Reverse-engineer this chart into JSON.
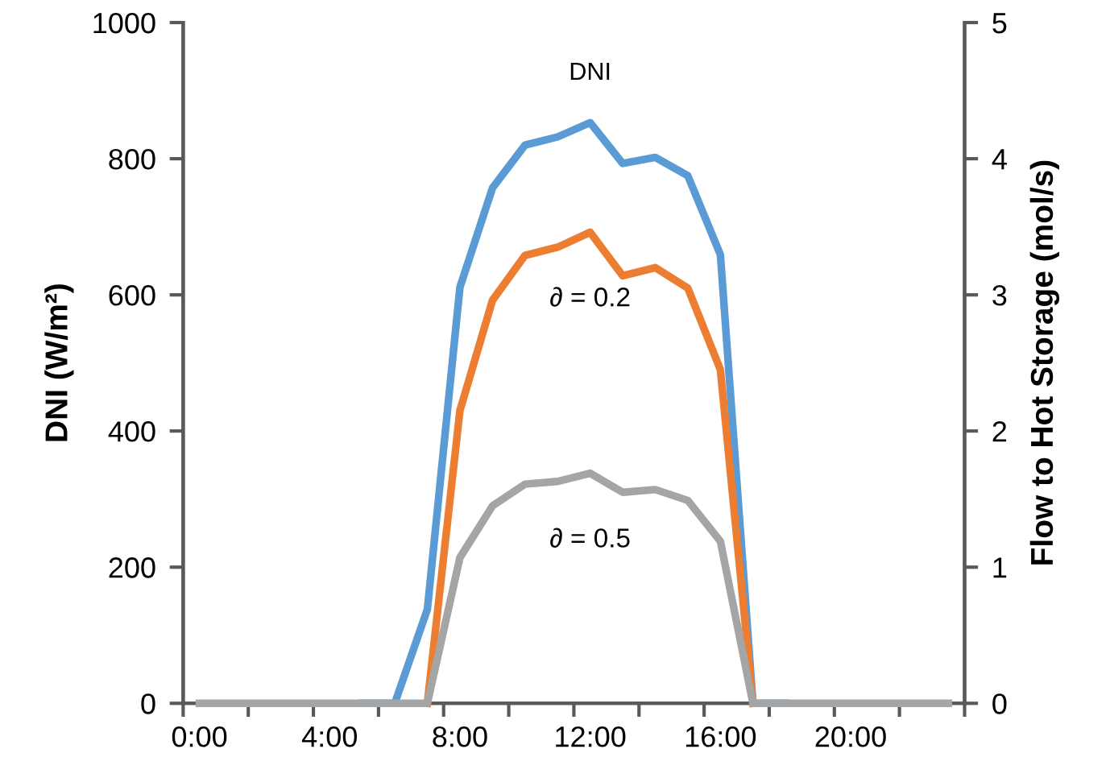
{
  "chart_data": {
    "type": "line",
    "x": [
      0,
      1,
      2,
      3,
      4,
      5,
      6,
      7,
      8,
      9,
      10,
      11,
      12,
      13,
      14,
      15,
      16,
      17,
      18,
      19,
      20,
      21,
      22,
      23
    ],
    "series": [
      {
        "name": "DNI",
        "color": "#5b9bd5",
        "values": [
          null,
          null,
          null,
          null,
          null,
          0,
          0,
          138,
          611,
          757,
          820,
          832,
          853,
          793,
          802,
          775,
          659,
          0,
          0,
          null,
          null,
          null,
          null,
          null
        ]
      },
      {
        "name": "∂ = 0.2",
        "color": "#ed7d31",
        "axis": "y2",
        "values": [
          null,
          null,
          null,
          null,
          null,
          null,
          null,
          0,
          2.15,
          2.96,
          3.29,
          3.35,
          3.46,
          3.14,
          3.2,
          3.05,
          2.45,
          0,
          null,
          null,
          null,
          null,
          null,
          null
        ]
      },
      {
        "name": "∂ = 0.5",
        "color": "#a5a5a5",
        "axis": "y2",
        "values": [
          0,
          0,
          0,
          0,
          0,
          0,
          0,
          0,
          1.07,
          1.45,
          1.61,
          1.63,
          1.69,
          1.55,
          1.57,
          1.49,
          1.19,
          0,
          0,
          0,
          0,
          0,
          0,
          0
        ]
      }
    ],
    "ylabel": "DNI (W/m²)",
    "y2label": "Flow to Hot Storage (mol/s)",
    "xlim": [
      -0.5,
      23.5
    ],
    "xticks": [
      {
        "value": 0,
        "label": "0:00"
      },
      {
        "value": 4,
        "label": "4:00"
      },
      {
        "value": 8,
        "label": "8:00"
      },
      {
        "value": 12,
        "label": "12:00"
      },
      {
        "value": 16,
        "label": "16:00"
      },
      {
        "value": 20,
        "label": "20:00"
      },
      {
        "value": -0.5,
        "label": null
      },
      {
        "value": 1.5,
        "label": null
      },
      {
        "value": 3.5,
        "label": null
      },
      {
        "value": 5.5,
        "label": null
      },
      {
        "value": 7.5,
        "label": null
      },
      {
        "value": 9.5,
        "label": null
      },
      {
        "value": 11.5,
        "label": null
      },
      {
        "value": 13.5,
        "label": null
      },
      {
        "value": 15.5,
        "label": null
      },
      {
        "value": 17.5,
        "label": null
      },
      {
        "value": 19.5,
        "label": null
      },
      {
        "value": 21.5,
        "label": null
      },
      {
        "value": 23.5,
        "label": null
      }
    ],
    "ylim": [
      0,
      1000
    ],
    "yticks": [
      0,
      200,
      400,
      600,
      800,
      1000
    ],
    "y2lim": [
      0,
      5
    ],
    "y2ticks": [
      0,
      1,
      2,
      3,
      4,
      5
    ],
    "grid": false,
    "legend": false,
    "marker": "none",
    "line_style": "solid"
  }
}
